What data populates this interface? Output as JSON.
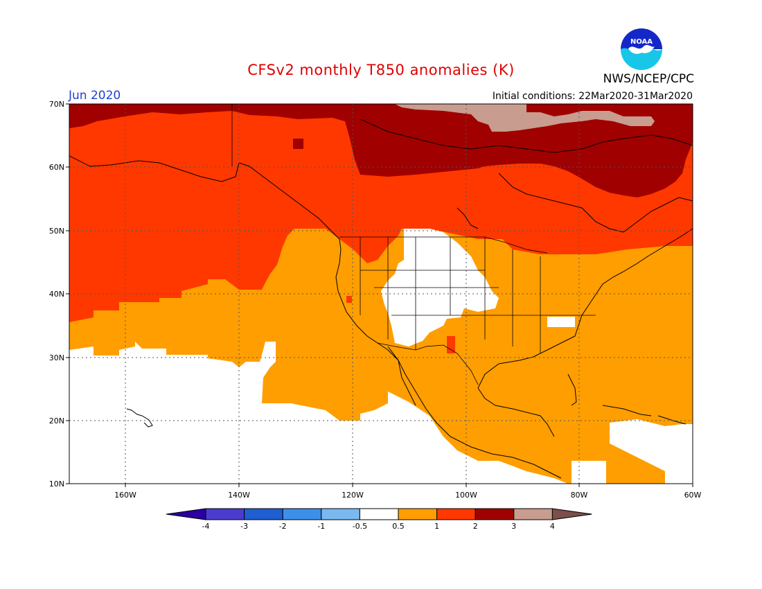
{
  "title": "CFSv2 monthly T850 anomalies (K)",
  "month": "Jun 2020",
  "init_conditions": "Initial conditions: 22Mar2020-31Mar2020",
  "agency": "NWS/NCEP/CPC",
  "logo_text": "NOAA",
  "lat_ticks": [
    "70N",
    "60N",
    "50N",
    "40N",
    "30N",
    "20N",
    "10N"
  ],
  "lon_ticks": [
    "160W",
    "140W",
    "120W",
    "100W",
    "80W",
    "60W"
  ],
  "colorbar": {
    "labels": [
      "-4",
      "-3",
      "-2",
      "-1",
      "-0.5",
      "0.5",
      "1",
      "2",
      "3",
      "4"
    ],
    "colors": [
      "#2b00a0",
      "#4b3ccf",
      "#1f5fd1",
      "#3d8fea",
      "#7ab8f0",
      "#ffffff",
      "#ff9e00",
      "#ff3800",
      "#a00000",
      "#c89c8f",
      "#7a5048"
    ]
  },
  "anomaly_colors": {
    "neutral": "#ffffff",
    "weak_warm": "#ff9e00",
    "moderate_warm": "#ff3800",
    "strong_warm": "#a00000",
    "very_strong_warm": "#c89c8f"
  }
}
